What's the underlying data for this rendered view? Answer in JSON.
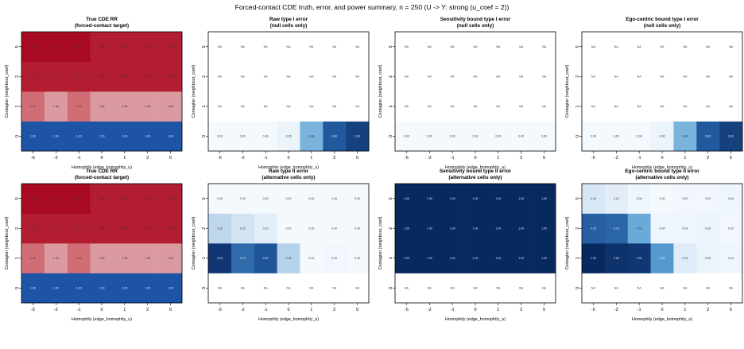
{
  "figure": {
    "title": "Forced-contact CDE truth, error, and power summary, n = 250 (U -> Y: strong (u_coef = 2))"
  },
  "chart_data": [
    {
      "type": "heatmap",
      "title": "True CDE RR",
      "subtitle": "(forced-contact target)",
      "xlabel": "Homophily (edge_homophily_u)",
      "ylabel": "Contagion (neighbour_coef)",
      "x": [
        "-5",
        "-2",
        "-1",
        "0",
        "1",
        "2",
        "5"
      ],
      "y": [
        "0",
        "1",
        "2",
        "5"
      ],
      "colormap": "diverging-red-blue",
      "values": [
        [
          1.0,
          1.0,
          1.0,
          1.0,
          1.0,
          1.0,
          1.0
        ],
        [
          1.1,
          1.08,
          1.1,
          1.08,
          1.08,
          1.08,
          1.08
        ],
        [
          1.14,
          1.14,
          1.14,
          1.14,
          1.14,
          1.14,
          1.14
        ],
        [
          1.15,
          1.15,
          1.15,
          1.14,
          1.14,
          1.14,
          1.14
        ]
      ],
      "labels": [
        [
          "1.00",
          "1.00",
          "1.00",
          "1.00",
          "1.00",
          "1.00",
          "1.00"
        ],
        [
          "1.10",
          "1.08",
          "1.10",
          "1.08",
          "1.08",
          "1.08",
          "1.08"
        ],
        [
          "1.14",
          "1.14",
          "1.14",
          "1.14",
          "1.14",
          "1.14",
          "1.14"
        ],
        [
          "1.15",
          "1.15",
          "1.15",
          "1.14",
          "1.14",
          "1.14",
          "1.14"
        ]
      ]
    },
    {
      "type": "heatmap",
      "title": "Raw type I error",
      "subtitle": "(null cells only)",
      "xlabel": "Homophily (edge_homophily_u)",
      "ylabel": "Contagion (neighbour_coef)",
      "x": [
        "-5",
        "-2",
        "-1",
        "0",
        "1",
        "2",
        "5"
      ],
      "y": [
        "0",
        "1",
        "2",
        "5"
      ],
      "colormap": "sequential-blue",
      "values": [
        [
          0.0,
          0.0,
          0.0,
          0.06,
          0.48,
          0.8,
          0.9
        ],
        [
          null,
          null,
          null,
          null,
          null,
          null,
          null
        ],
        [
          null,
          null,
          null,
          null,
          null,
          null,
          null
        ],
        [
          null,
          null,
          null,
          null,
          null,
          null,
          null
        ]
      ],
      "labels": [
        [
          "0.00",
          "0.00",
          "0.00",
          "0.06",
          "0.48",
          "0.80",
          "0.90"
        ],
        [
          "NA",
          "NA",
          "NA",
          "NA",
          "NA",
          "NA",
          "NA"
        ],
        [
          "NA",
          "NA",
          "NA",
          "NA",
          "NA",
          "NA",
          "NA"
        ],
        [
          "NA",
          "NA",
          "NA",
          "NA",
          "NA",
          "NA",
          "NA"
        ]
      ]
    },
    {
      "type": "heatmap",
      "title": "Sensitivity bound type I error",
      "subtitle": "(null cells only)",
      "xlabel": "Homophily (edge_homophily_u)",
      "ylabel": "Contagion (neighbour_coef)",
      "x": [
        "-5",
        "-2",
        "-1",
        "0",
        "1",
        "2",
        "5"
      ],
      "y": [
        "0",
        "1",
        "2",
        "5"
      ],
      "colormap": "sequential-blue",
      "values": [
        [
          0.0,
          0.0,
          0.0,
          0.0,
          0.0,
          0.0,
          0.0
        ],
        [
          null,
          null,
          null,
          null,
          null,
          null,
          null
        ],
        [
          null,
          null,
          null,
          null,
          null,
          null,
          null
        ],
        [
          null,
          null,
          null,
          null,
          null,
          null,
          null
        ]
      ],
      "labels": [
        [
          "0.00",
          "0.00",
          "0.00",
          "0.00",
          "0.00",
          "0.00",
          "0.00"
        ],
        [
          "NA",
          "NA",
          "NA",
          "NA",
          "NA",
          "NA",
          "NA"
        ],
        [
          "NA",
          "NA",
          "NA",
          "NA",
          "NA",
          "NA",
          "NA"
        ],
        [
          "NA",
          "NA",
          "NA",
          "NA",
          "NA",
          "NA",
          "NA"
        ]
      ]
    },
    {
      "type": "heatmap",
      "title": "Ego-centric bound type I error",
      "subtitle": "(null cells only)",
      "xlabel": "Homophily (edge_homophily_u)",
      "ylabel": "Contagion (neighbour_coef)",
      "x": [
        "-5",
        "-2",
        "-1",
        "0",
        "1",
        "2",
        "5"
      ],
      "y": [
        "0",
        "1",
        "2",
        "5"
      ],
      "colormap": "sequential-blue",
      "values": [
        [
          0.0,
          0.0,
          0.0,
          0.06,
          0.48,
          0.8,
          0.9
        ],
        [
          null,
          null,
          null,
          null,
          null,
          null,
          null
        ],
        [
          null,
          null,
          null,
          null,
          null,
          null,
          null
        ],
        [
          null,
          null,
          null,
          null,
          null,
          null,
          null
        ]
      ],
      "labels": [
        [
          "0.00",
          "0.00",
          "0.00",
          "0.06",
          "0.48",
          "0.80",
          "0.90"
        ],
        [
          "NA",
          "NA",
          "NA",
          "NA",
          "NA",
          "NA",
          "NA"
        ],
        [
          "NA",
          "NA",
          "NA",
          "NA",
          "NA",
          "NA",
          "NA"
        ],
        [
          "NA",
          "NA",
          "NA",
          "NA",
          "NA",
          "NA",
          "NA"
        ]
      ]
    },
    {
      "type": "heatmap",
      "title": "True CDE RR",
      "subtitle": "(forced-contact target)",
      "xlabel": "Homophily (edge_homophily_u)",
      "ylabel": "Contagion (neighbour_coef)",
      "x": [
        "-5",
        "-2",
        "-1",
        "0",
        "1",
        "2",
        "5"
      ],
      "y": [
        "0",
        "1",
        "2",
        "5"
      ],
      "colormap": "diverging-red-blue",
      "values": [
        [
          1.0,
          1.0,
          1.0,
          1.0,
          1.0,
          1.0,
          1.0
        ],
        [
          1.1,
          1.08,
          1.1,
          1.08,
          1.08,
          1.08,
          1.08
        ],
        [
          1.14,
          1.14,
          1.14,
          1.14,
          1.14,
          1.14,
          1.14
        ],
        [
          1.15,
          1.15,
          1.15,
          1.14,
          1.14,
          1.14,
          1.14
        ]
      ],
      "labels": [
        [
          "1.00",
          "1.00",
          "1.00",
          "1.00",
          "1.00",
          "1.00",
          "1.00"
        ],
        [
          "1.10",
          "1.08",
          "1.10",
          "1.08",
          "1.08",
          "1.08",
          "1.08"
        ],
        [
          "1.14",
          "1.14",
          "1.14",
          "1.14",
          "1.14",
          "1.14",
          "1.14"
        ],
        [
          "1.15",
          "1.15",
          "1.15",
          "1.14",
          "1.14",
          "1.14",
          "1.14"
        ]
      ]
    },
    {
      "type": "heatmap",
      "title": "Raw type II error",
      "subtitle": "(alternative cells only)",
      "xlabel": "Homophily (edge_homophily_u)",
      "ylabel": "Contagion (neighbour_coef)",
      "x": [
        "-5",
        "-2",
        "-1",
        "0",
        "1",
        "2",
        "5"
      ],
      "y": [
        "0",
        "1",
        "2",
        "5"
      ],
      "colormap": "sequential-blue",
      "values": [
        [
          null,
          null,
          null,
          null,
          null,
          null,
          null
        ],
        [
          0.94,
          0.74,
          0.82,
          0.34,
          0.0,
          0.02,
          0.0
        ],
        [
          0.32,
          0.22,
          0.12,
          0.0,
          0.0,
          0.0,
          0.0
        ],
        [
          0.0,
          0.0,
          0.0,
          0.0,
          0.0,
          0.0,
          0.0
        ]
      ],
      "labels": [
        [
          "NA",
          "NA",
          "NA",
          "NA",
          "NA",
          "NA",
          "NA"
        ],
        [
          "0.94",
          "0.74",
          "0.82",
          "0.34",
          "0.00",
          "0.02",
          "0.00"
        ],
        [
          "0.32",
          "0.22",
          "0.12",
          "0.00",
          "0.00",
          "0.00",
          "0.00"
        ],
        [
          "0.00",
          "0.00",
          "0.00",
          "0.00",
          "0.00",
          "0.00",
          "0.00"
        ]
      ]
    },
    {
      "type": "heatmap",
      "title": "Sensitivity bound type II error",
      "subtitle": "(alternative cells only)",
      "xlabel": "Homophily (edge_homophily_u)",
      "ylabel": "Contagion (neighbour_coef)",
      "x": [
        "-5",
        "-2",
        "-1",
        "0",
        "1",
        "2",
        "5"
      ],
      "y": [
        "0",
        "1",
        "2",
        "5"
      ],
      "colormap": "sequential-blue",
      "values": [
        [
          null,
          null,
          null,
          null,
          null,
          null,
          null
        ],
        [
          1.0,
          1.0,
          1.0,
          1.0,
          1.0,
          1.0,
          1.0
        ],
        [
          1.0,
          1.0,
          1.0,
          1.0,
          1.0,
          1.0,
          1.0
        ],
        [
          1.0,
          1.0,
          1.0,
          1.0,
          1.0,
          1.0,
          1.0
        ]
      ],
      "labels": [
        [
          "NA",
          "NA",
          "NA",
          "NA",
          "NA",
          "NA",
          "NA"
        ],
        [
          "1.00",
          "1.00",
          "1.00",
          "1.00",
          "1.00",
          "1.00",
          "1.00"
        ],
        [
          "1.00",
          "1.00",
          "1.00",
          "1.00",
          "1.00",
          "1.00",
          "1.00"
        ],
        [
          "1.00",
          "1.00",
          "1.00",
          "1.00",
          "1.00",
          "1.00",
          "1.00"
        ]
      ]
    },
    {
      "type": "heatmap",
      "title": "Ego-centric bound type II error",
      "subtitle": "(alternative cells only)",
      "xlabel": "Homophily (edge_homophily_u)",
      "ylabel": "Contagion (neighbour_coef)",
      "x": [
        "-5",
        "-2",
        "-1",
        "0",
        "1",
        "2",
        "5"
      ],
      "y": [
        "0",
        "1",
        "2",
        "5"
      ],
      "colormap": "sequential-blue",
      "values": [
        [
          null,
          null,
          null,
          null,
          null,
          null,
          null
        ],
        [
          1.0,
          0.96,
          0.94,
          0.58,
          0.14,
          0.06,
          0.04
        ],
        [
          0.78,
          0.76,
          0.52,
          0.04,
          0.04,
          0.06,
          0.02
        ],
        [
          0.18,
          0.12,
          0.04,
          0.0,
          0.02,
          0.02,
          0.04
        ]
      ],
      "labels": [
        [
          "NA",
          "NA",
          "NA",
          "NA",
          "NA",
          "NA",
          "NA"
        ],
        [
          "1.00",
          "0.96",
          "0.94",
          "0.58",
          "0.14",
          "0.06",
          "0.04"
        ],
        [
          "0.78",
          "0.76",
          "0.52",
          "0.04",
          "0.04",
          "0.06",
          "0.02"
        ],
        [
          "0.18",
          "0.12",
          "0.04",
          "0.00",
          "0.02",
          "0.02",
          "0.04"
        ]
      ]
    }
  ]
}
